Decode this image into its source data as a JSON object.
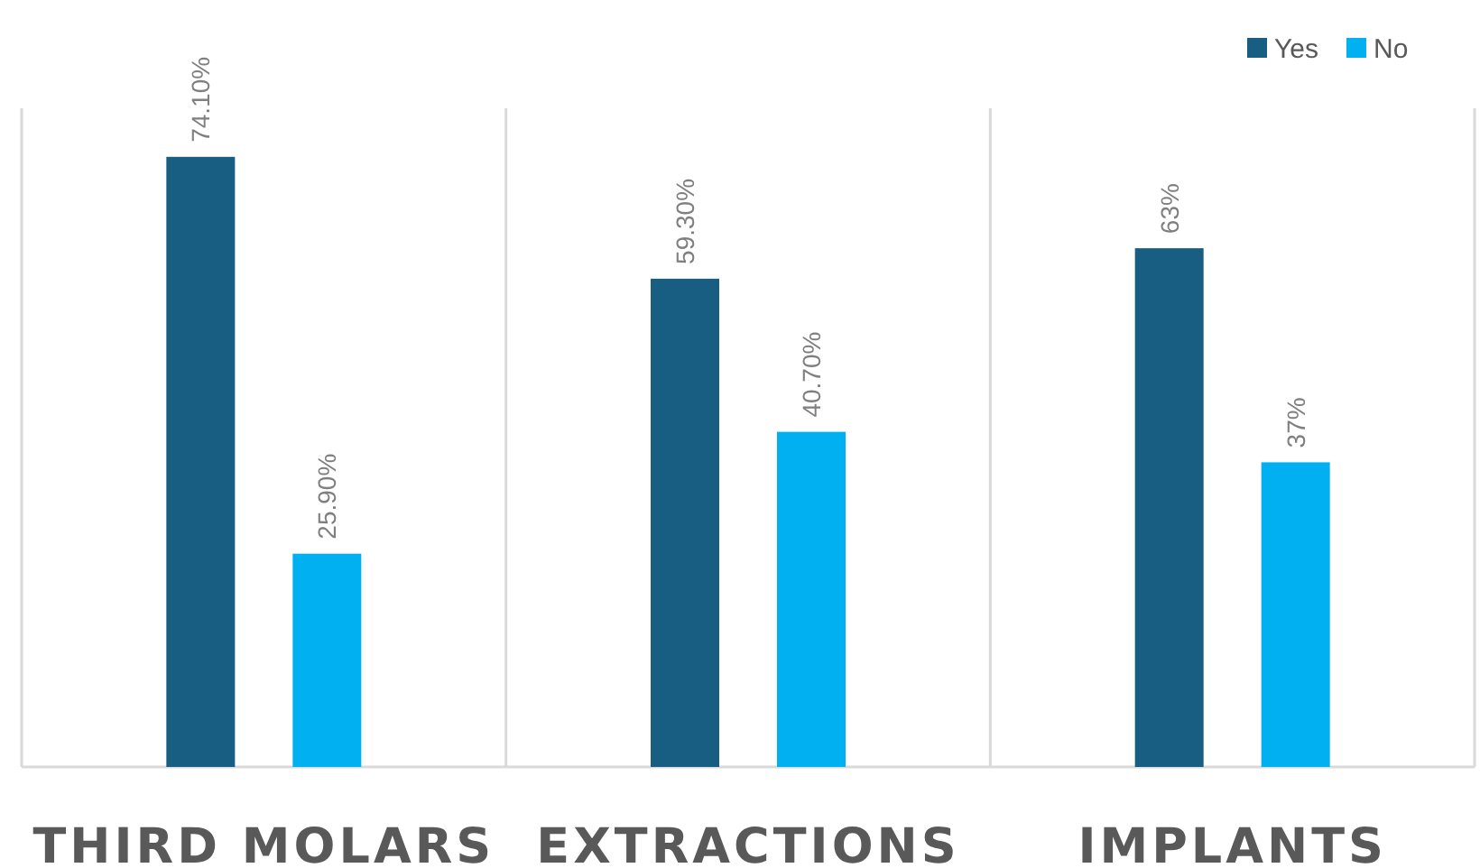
{
  "chart_data": {
    "type": "bar",
    "categories": [
      "THIRD MOLARS",
      "EXTRACTIONS",
      "IMPLANTS"
    ],
    "series": [
      {
        "name": "Yes",
        "color": "#175e82",
        "values": [
          74.1,
          59.3,
          63
        ],
        "value_labels": [
          "74.10%",
          "59.30%",
          "63%"
        ]
      },
      {
        "name": "No",
        "color": "#00b0f0",
        "values": [
          25.9,
          40.7,
          37
        ],
        "value_labels": [
          "25.90%",
          "40.70%",
          "37%"
        ]
      }
    ],
    "ylim": [
      0,
      80
    ],
    "grid": "x",
    "legend": "top right",
    "tick_labels": "x"
  }
}
